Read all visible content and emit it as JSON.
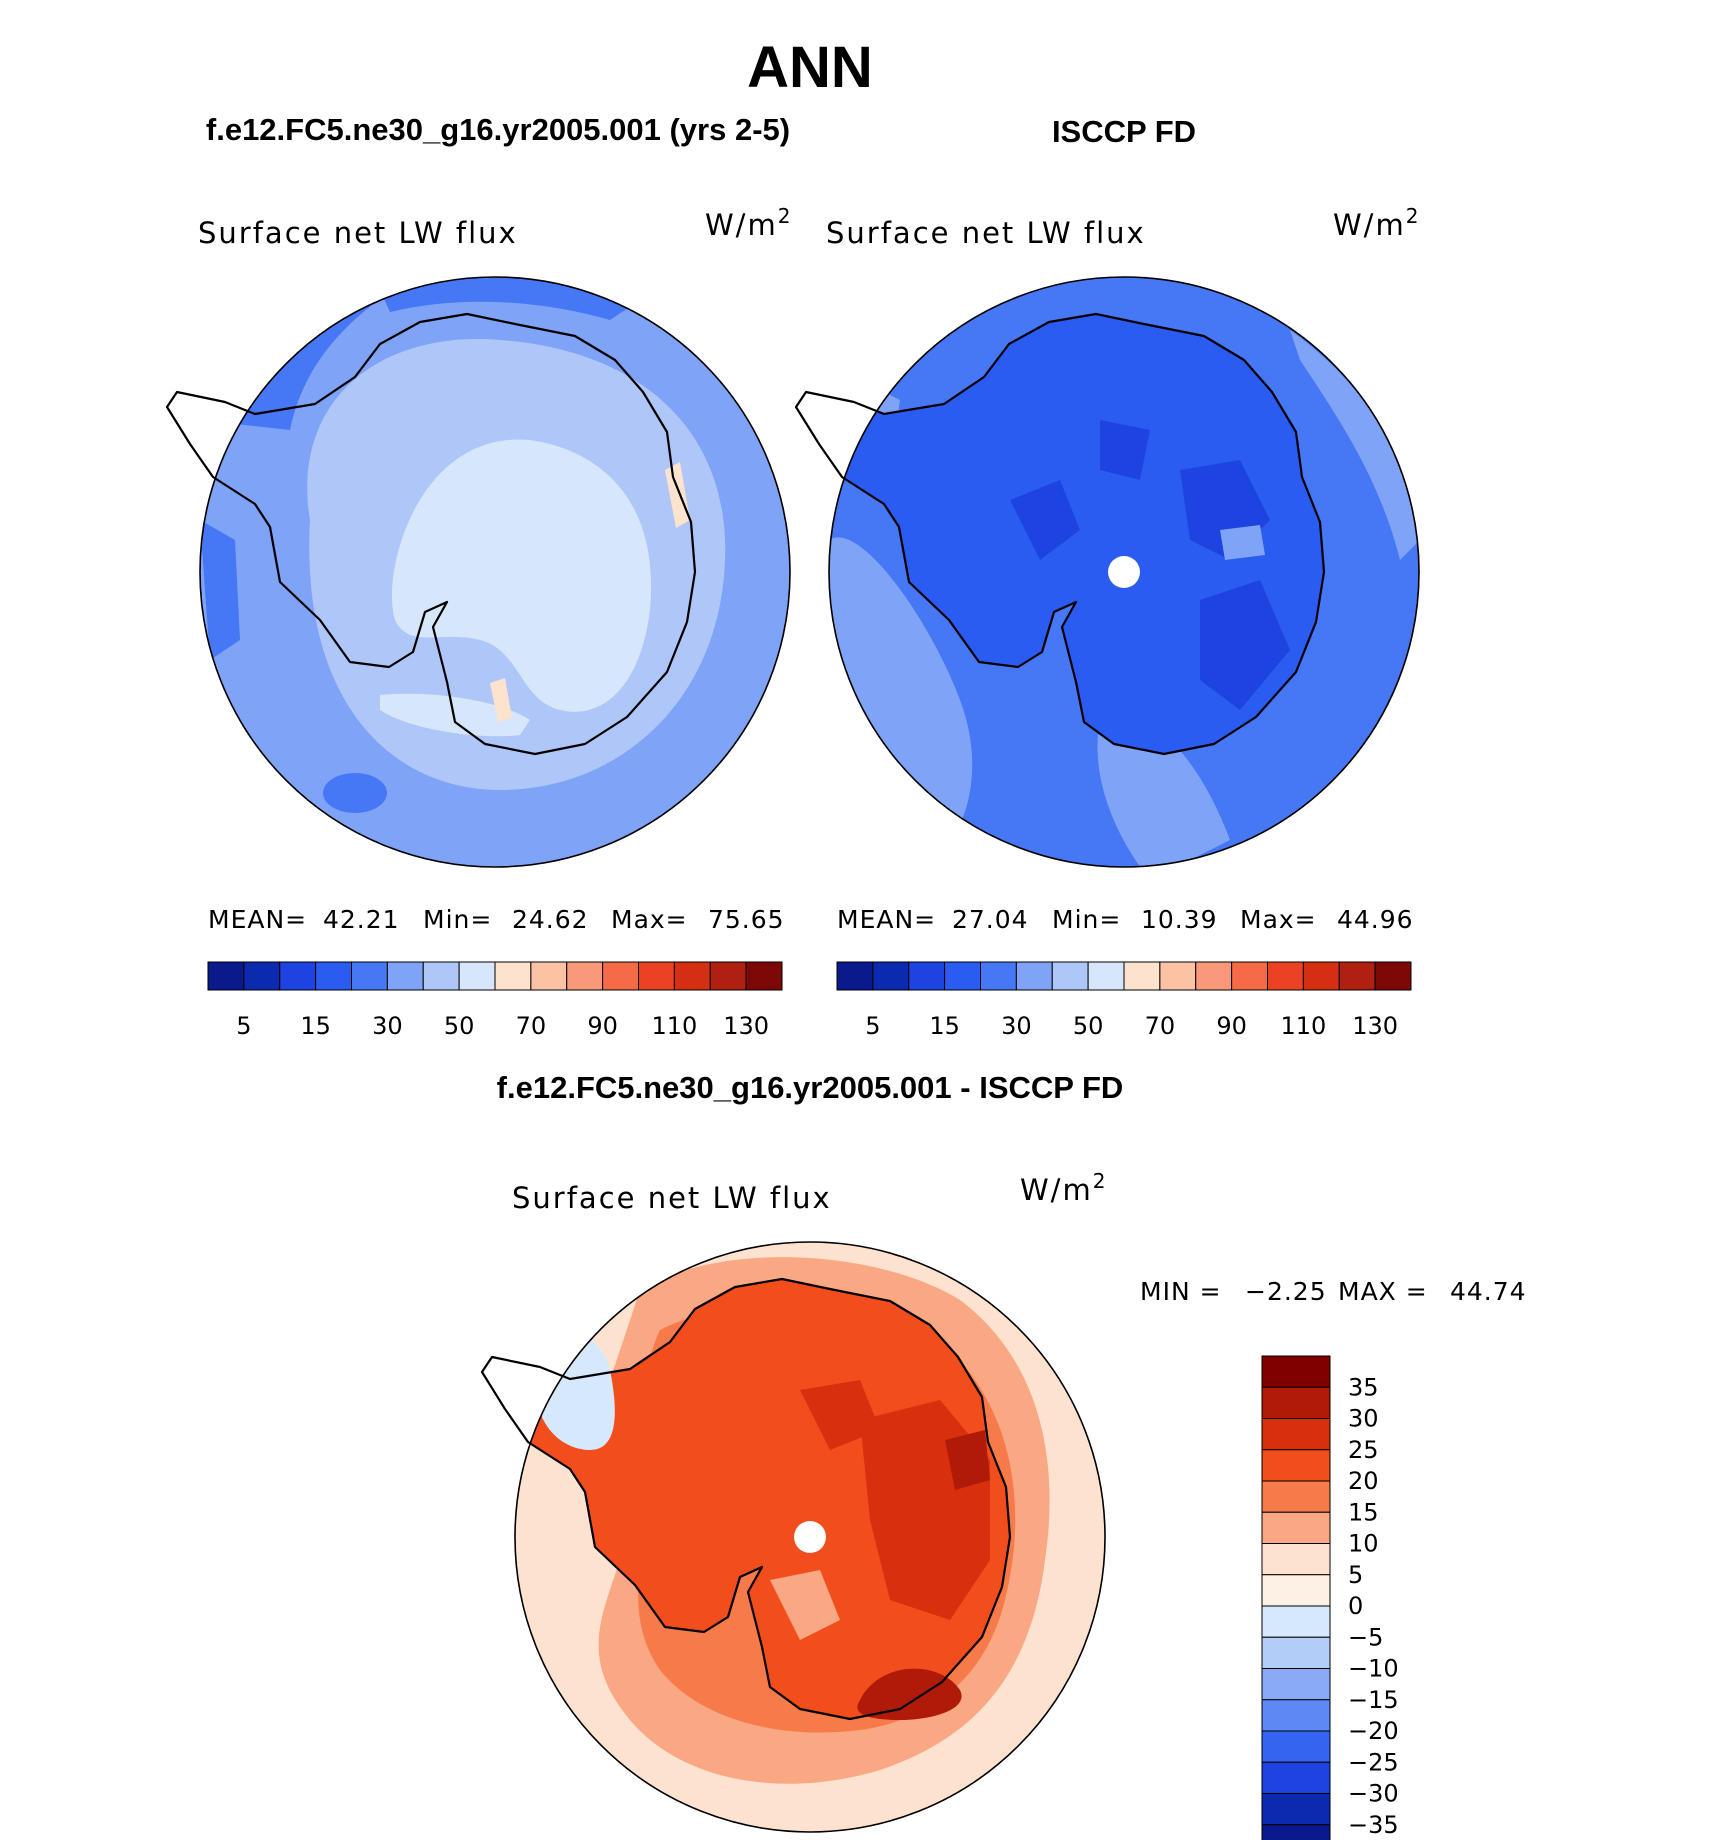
{
  "figure_title": "ANN",
  "chart_data": [
    {
      "type": "heatmap",
      "panel": "model",
      "title": "f.e12.FC5.ne30_g16.yr2005.001 (yrs 2-5)",
      "variable": "Surface net LW flux",
      "units": "W/m",
      "units_exp": "2",
      "stats": {
        "mean_label": "MEAN=",
        "mean": "42.21",
        "min_label": "Min=",
        "min": "24.62",
        "max_label": "Max=",
        "max": "75.65"
      },
      "legend_ticks": [
        "5",
        "15",
        "30",
        "50",
        "70",
        "90",
        "110",
        "130"
      ],
      "levels": [
        0,
        5,
        10,
        15,
        20,
        30,
        40,
        50,
        60,
        70,
        80,
        90,
        100,
        110,
        120,
        130
      ],
      "legend_colors": [
        "#0a1a8c",
        "#0b2ab0",
        "#1d44e0",
        "#2a5cf2",
        "#4677f5",
        "#7fa3f7",
        "#afc6f9",
        "#d6e6fb",
        "#fde3cd",
        "#fbc2a4",
        "#f9997a",
        "#f56b47",
        "#ec4224",
        "#d42f12",
        "#b02010",
        "#7e0808"
      ],
      "regions": [
        {
          "name": "ocean",
          "color": "#7fa3f7"
        },
        {
          "name": "outer-ring",
          "color": "#4677f5"
        },
        {
          "name": "sea-ice",
          "color": "#afc6f9"
        },
        {
          "name": "interior",
          "color": "#d6e6fb"
        },
        {
          "name": "coastal-warm",
          "color": "#fde3cd"
        }
      ]
    },
    {
      "type": "heatmap",
      "panel": "obs",
      "title": "ISCCP FD",
      "variable": "Surface net LW flux",
      "units": "W/m",
      "units_exp": "2",
      "stats": {
        "mean_label": "MEAN=",
        "mean": "27.04",
        "min_label": "Min=",
        "min": "10.39",
        "max_label": "Max=",
        "max": "44.96"
      },
      "legend_ticks": [
        "5",
        "15",
        "30",
        "50",
        "70",
        "90",
        "110",
        "130"
      ],
      "levels": [
        0,
        5,
        10,
        15,
        20,
        30,
        40,
        50,
        60,
        70,
        80,
        90,
        100,
        110,
        120,
        130
      ],
      "legend_colors": [
        "#0a1a8c",
        "#0b2ab0",
        "#1d44e0",
        "#2a5cf2",
        "#4677f5",
        "#7fa3f7",
        "#afc6f9",
        "#d6e6fb",
        "#fde3cd",
        "#fbc2a4",
        "#f9997a",
        "#f56b47",
        "#ec4224",
        "#d42f12",
        "#b02010",
        "#7e0808"
      ],
      "regions": [
        {
          "name": "ocean",
          "color": "#4677f5"
        },
        {
          "name": "outer-light",
          "color": "#7fa3f7"
        },
        {
          "name": "continent",
          "color": "#2a5cf2"
        },
        {
          "name": "interior-dark",
          "color": "#1d44e0"
        },
        {
          "name": "pole-hole",
          "color": "#ffffff"
        }
      ]
    },
    {
      "type": "heatmap",
      "panel": "difference",
      "title": "f.e12.FC5.ne30_g16.yr2005.001 - ISCCP FD",
      "variable": "Surface net LW flux",
      "units": "W/m",
      "units_exp": "2",
      "stats": {
        "min_label": "MIN =",
        "min": "−2.25",
        "max_label": "MAX =",
        "max": "44.74"
      },
      "legend_ticks": [
        "35",
        "30",
        "25",
        "20",
        "15",
        "10",
        "5",
        "0",
        "−5",
        "−10",
        "−15",
        "−20",
        "−25",
        "−30",
        "−35"
      ],
      "levels": [
        -40,
        -35,
        -30,
        -25,
        -20,
        -15,
        -10,
        -5,
        0,
        5,
        10,
        15,
        20,
        25,
        30,
        35,
        40
      ],
      "legend_colors": [
        "#800000",
        "#b01a08",
        "#d8300e",
        "#f24d1d",
        "#f77a4a",
        "#faa883",
        "#fde2d0",
        "#fdf0e4",
        "#d6e8fb",
        "#b3cdf9",
        "#89aaf7",
        "#5e88f4",
        "#3565f0",
        "#1d44e0",
        "#0b2ab0",
        "#0a1a8c"
      ],
      "regions": [
        {
          "name": "ocean-far",
          "color": "#fde2d0"
        },
        {
          "name": "ocean-near",
          "color": "#faa883"
        },
        {
          "name": "ice-edge",
          "color": "#f77a4a"
        },
        {
          "name": "continent",
          "color": "#f24d1d"
        },
        {
          "name": "hotspot",
          "color": "#d8300e"
        },
        {
          "name": "hotspot-deep",
          "color": "#b01a08"
        },
        {
          "name": "cool-patch",
          "color": "#d6e8fb"
        },
        {
          "name": "pole-hole",
          "color": "#ffffff"
        }
      ]
    }
  ]
}
